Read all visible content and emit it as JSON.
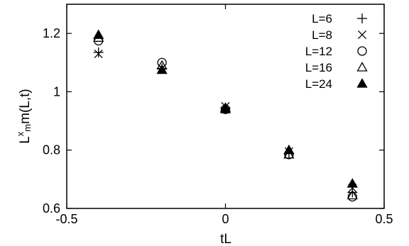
{
  "chart_data": {
    "type": "scatter",
    "xlabel": "tL",
    "ylabel": {
      "base": "L",
      "sup": "x",
      "sub": "m",
      "rest": "m(L,t)"
    },
    "xlim": [
      -0.5,
      0.5
    ],
    "ylim": [
      0.6,
      1.3
    ],
    "xticks": [
      "-0.5",
      "0",
      "0.5"
    ],
    "xtick_values": [
      -0.5,
      0,
      0.5
    ],
    "yticks": [
      "0.6",
      "0.8",
      "1",
      "1.2"
    ],
    "ytick_values": [
      0.6,
      0.8,
      1.0,
      1.2
    ],
    "grid": false,
    "legend_placement": "top-right",
    "series": [
      {
        "name": "L=6",
        "marker": "plus",
        "x": [
          -0.4,
          -0.2,
          0,
          0.2,
          0.4
        ],
        "y": [
          1.135,
          1.08,
          0.945,
          0.79,
          0.655
        ]
      },
      {
        "name": "L=8",
        "marker": "cross",
        "x": [
          -0.4,
          -0.2,
          0,
          0.2,
          0.4
        ],
        "y": [
          1.13,
          1.08,
          0.95,
          0.795,
          0.67
        ]
      },
      {
        "name": "L=12",
        "marker": "circle",
        "x": [
          -0.4,
          -0.2,
          0,
          0.2,
          0.4
        ],
        "y": [
          1.175,
          1.1,
          0.94,
          0.785,
          0.64
        ]
      },
      {
        "name": "L=16",
        "marker": "triangle",
        "x": [
          -0.4,
          -0.2,
          0,
          0.2,
          0.4
        ],
        "y": [
          1.185,
          1.09,
          0.945,
          0.785,
          0.645
        ]
      },
      {
        "name": "L=24",
        "marker": "filled-triangle",
        "x": [
          -0.4,
          -0.2,
          0,
          0.2,
          0.4
        ],
        "y": [
          1.195,
          1.075,
          0.94,
          0.8,
          0.685
        ]
      }
    ]
  }
}
